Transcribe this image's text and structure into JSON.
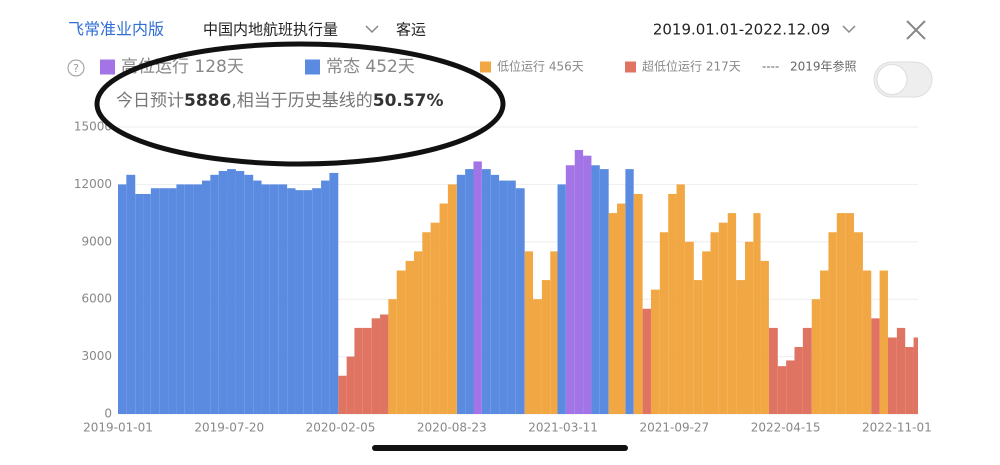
{
  "header": {
    "brand": "飞常准业内版",
    "metric": "中国内地航班执行量",
    "mode": "客运",
    "range": "2019.01.01-2022.12.09"
  },
  "summary": {
    "prefix": "今日预计",
    "value": 5886,
    "middle": ",相当于历史基线的",
    "ratio": {
      "value": 50.57,
      "label": "50.57%"
    }
  },
  "reference": "2019年参照",
  "chart_data": {
    "type": "bar",
    "x": [
      "2019-01-01",
      "2019-01-16",
      "2019-02-01",
      "2019-02-16",
      "2019-03-01",
      "2019-03-16",
      "2019-04-01",
      "2019-04-16",
      "2019-05-01",
      "2019-05-16",
      "2019-06-01",
      "2019-06-16",
      "2019-07-01",
      "2019-07-16",
      "2019-08-01",
      "2019-08-16",
      "2019-09-01",
      "2019-09-16",
      "2019-10-01",
      "2019-10-16",
      "2019-11-01",
      "2019-11-16",
      "2019-12-01",
      "2019-12-16",
      "2020-01-01",
      "2020-01-16",
      "2020-02-01",
      "2020-02-16",
      "2020-03-01",
      "2020-03-16",
      "2020-04-01",
      "2020-04-16",
      "2020-05-01",
      "2020-05-16",
      "2020-06-01",
      "2020-06-16",
      "2020-07-01",
      "2020-07-16",
      "2020-08-01",
      "2020-08-16",
      "2020-09-01",
      "2020-09-16",
      "2020-10-01",
      "2020-10-16",
      "2020-11-01",
      "2020-11-16",
      "2020-12-01",
      "2020-12-16",
      "2021-01-01",
      "2021-01-16",
      "2021-02-01",
      "2021-02-16",
      "2021-03-01",
      "2021-03-16",
      "2021-04-01",
      "2021-04-16",
      "2021-05-01",
      "2021-05-16",
      "2021-06-01",
      "2021-06-16",
      "2021-07-01",
      "2021-07-16",
      "2021-08-01",
      "2021-08-16",
      "2021-09-01",
      "2021-09-16",
      "2021-10-01",
      "2021-10-16",
      "2021-11-01",
      "2021-11-16",
      "2021-12-01",
      "2021-12-16",
      "2022-01-01",
      "2022-01-16",
      "2022-02-01",
      "2022-02-16",
      "2022-03-01",
      "2022-03-16",
      "2022-04-01",
      "2022-04-16",
      "2022-05-01",
      "2022-05-16",
      "2022-06-01",
      "2022-06-16",
      "2022-07-01",
      "2022-07-16",
      "2022-08-01",
      "2022-08-16",
      "2022-09-01",
      "2022-09-16",
      "2022-10-01",
      "2022-10-16",
      "2022-11-01",
      "2022-11-16",
      "2022-12-01"
    ],
    "series": [
      {
        "name": "高位运行 128天",
        "color": "#a274e6",
        "values": [
          null,
          null,
          null,
          null,
          null,
          null,
          null,
          null,
          null,
          null,
          null,
          null,
          null,
          null,
          null,
          null,
          null,
          null,
          null,
          null,
          null,
          null,
          null,
          null,
          null,
          null,
          null,
          null,
          null,
          null,
          null,
          null,
          null,
          null,
          null,
          null,
          null,
          null,
          null,
          null,
          null,
          null,
          13200,
          null,
          null,
          null,
          null,
          null,
          null,
          null,
          null,
          null,
          null,
          13000,
          13800,
          13500,
          null,
          null,
          null,
          null,
          null,
          null,
          null,
          null,
          null,
          null,
          null,
          null,
          null,
          null,
          null,
          null,
          null,
          null,
          null,
          null,
          null,
          null,
          null,
          null,
          null,
          null,
          null,
          null,
          null,
          null,
          null,
          null,
          null,
          null,
          null,
          null,
          null,
          null,
          null
        ]
      },
      {
        "name": "常态 452天",
        "color": "#5b8be0",
        "values": [
          12000,
          12500,
          11500,
          11500,
          11800,
          11800,
          11800,
          12000,
          12000,
          12000,
          12200,
          12500,
          12700,
          12800,
          12700,
          12500,
          12200,
          12000,
          12000,
          12000,
          11800,
          11700,
          11700,
          11800,
          12200,
          12600,
          null,
          null,
          null,
          null,
          null,
          null,
          null,
          null,
          null,
          null,
          null,
          null,
          null,
          null,
          12500,
          12800,
          null,
          12800,
          12500,
          12200,
          12200,
          11800,
          null,
          null,
          null,
          null,
          12000,
          null,
          null,
          null,
          13000,
          12800,
          null,
          null,
          12800,
          null,
          null,
          null,
          null,
          null,
          null,
          null,
          null,
          null,
          null,
          null,
          null,
          null,
          null,
          null,
          null,
          null,
          null,
          null,
          null,
          null,
          null,
          null,
          null,
          null,
          null,
          null,
          null,
          null,
          null,
          null,
          null,
          null,
          null
        ]
      },
      {
        "name": "低位运行 456天",
        "color": "#f1a844",
        "values": [
          null,
          null,
          null,
          null,
          null,
          null,
          null,
          null,
          null,
          null,
          null,
          null,
          null,
          null,
          null,
          null,
          null,
          null,
          null,
          null,
          null,
          null,
          null,
          null,
          null,
          null,
          null,
          null,
          null,
          null,
          null,
          null,
          6000,
          7500,
          8000,
          8500,
          9500,
          10000,
          11000,
          12000,
          null,
          null,
          null,
          null,
          null,
          null,
          null,
          null,
          8500,
          6000,
          7000,
          8500,
          null,
          null,
          null,
          null,
          null,
          null,
          10500,
          11000,
          null,
          11500,
          null,
          6500,
          9500,
          11500,
          12000,
          9000,
          7000,
          8500,
          9500,
          10000,
          10500,
          7000,
          9000,
          10500,
          8000,
          null,
          null,
          null,
          null,
          null,
          6000,
          7500,
          9500,
          10500,
          10500,
          9500,
          7500,
          null,
          7500,
          null,
          null,
          null,
          null
        ]
      },
      {
        "name": "超低位运行 217天",
        "color": "#e07462",
        "values": [
          null,
          null,
          null,
          null,
          null,
          null,
          null,
          null,
          null,
          null,
          null,
          null,
          null,
          null,
          null,
          null,
          null,
          null,
          null,
          null,
          null,
          null,
          null,
          null,
          null,
          null,
          2000,
          3000,
          4500,
          4500,
          5000,
          5200,
          null,
          null,
          null,
          null,
          null,
          null,
          null,
          null,
          null,
          null,
          null,
          null,
          null,
          null,
          null,
          null,
          null,
          null,
          null,
          null,
          null,
          null,
          null,
          null,
          null,
          null,
          null,
          null,
          null,
          null,
          5500,
          null,
          null,
          null,
          null,
          null,
          null,
          null,
          null,
          null,
          null,
          null,
          null,
          null,
          null,
          4500,
          2500,
          2800,
          3500,
          4500,
          null,
          null,
          null,
          null,
          null,
          null,
          null,
          5000,
          null,
          4000,
          4500,
          3500,
          4000
        ]
      }
    ],
    "xlim": [
      "2019-01-01",
      "2022-12-09"
    ],
    "xticks": [
      "2019-01-01",
      "2019-07-20",
      "2020-02-05",
      "2020-08-23",
      "2021-03-11",
      "2021-09-27",
      "2022-04-15",
      "2022-11-01"
    ],
    "ylim": [
      0,
      15000
    ],
    "yticks": [
      0,
      3000,
      6000,
      9000,
      12000,
      15000
    ],
    "grid": true
  }
}
